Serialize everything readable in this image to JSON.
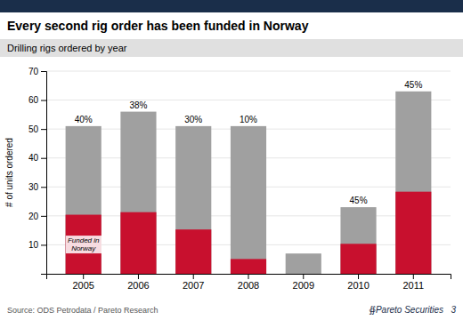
{
  "chart_data": {
    "type": "bar",
    "title": "Every second rig order has been funded in Norway",
    "subtitle": "Drilling rigs ordered by year",
    "ylabel": "# of units ordered",
    "source": "Source: ODS Petrodata / Pareto Research",
    "annotations": [
      "Funded in\nNorway",
      "∯Pareto Securities   3"
    ],
    "categories": [
      "2005",
      "2006",
      "2007",
      "2008",
      "2009",
      "2010",
      "2011"
    ],
    "series": [
      {
        "values": [
          51,
          56,
          51,
          51,
          7,
          23,
          63
        ],
        "color": "#a0a0a0"
      },
      {
        "values": [
          20.4,
          21.28,
          15.3,
          5.1,
          0,
          10.35,
          28.35
        ],
        "color": "#C8102E",
        "shares": [
          40,
          38,
          30,
          10,
          0,
          45,
          45
        ],
        "share_labels": [
          "40%",
          "38%",
          "30%",
          "10%",
          null,
          "45%",
          "45%"
        ]
      }
    ],
    "ylim": [
      0,
      70
    ],
    "yticks": [
      10,
      20,
      30,
      40,
      50,
      60,
      70
    ],
    "grid": true
  }
}
